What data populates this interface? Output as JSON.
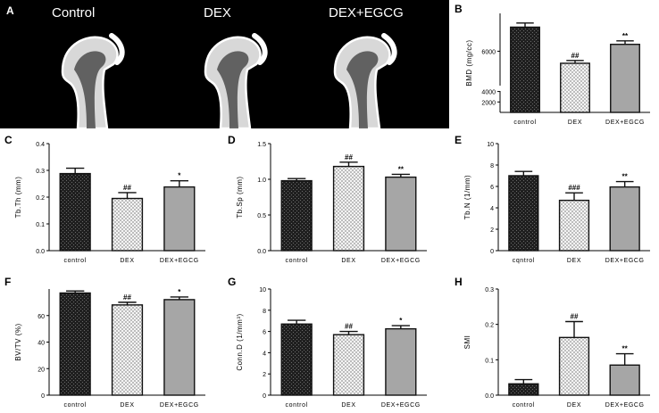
{
  "panel_a": {
    "letter": "A",
    "labels": [
      "Control",
      "DEX",
      "DEX+EGCG"
    ]
  },
  "colors": {
    "control": "#2b2b2b",
    "dex": "#e9e9e9",
    "dex_egcg": "#a6a6a6"
  },
  "chart_data": [
    {
      "id": "B",
      "letter": "B",
      "type": "bar",
      "ylabel": "BMD (mg/cc)",
      "categories": [
        "control",
        "DEX",
        "DEX+EGCG"
      ],
      "values": [
        6700,
        5650,
        6200
      ],
      "errors": [
        120,
        80,
        100
      ],
      "annotations": [
        "",
        "##",
        "**"
      ],
      "broken_axis": true,
      "ylim": [
        0,
        7100
      ],
      "break_range": [
        4100,
        5000
      ],
      "yticks": [
        2000,
        4000,
        6000
      ],
      "ytick_labels": [
        "2000",
        "4000",
        "6000"
      ]
    },
    {
      "id": "C",
      "letter": "C",
      "type": "bar",
      "ylabel": "Tb.Th (mm)",
      "categories": [
        "control",
        "DEX",
        "DEX+EGCG"
      ],
      "values": [
        0.288,
        0.195,
        0.238
      ],
      "errors": [
        0.02,
        0.022,
        0.023
      ],
      "annotations": [
        "",
        "##",
        "*"
      ],
      "ylim": [
        0,
        0.4
      ],
      "yticks": [
        0,
        0.1,
        0.2,
        0.3,
        0.4
      ],
      "ytick_labels": [
        "0.0",
        "0.1",
        "0.2",
        "0.3",
        "0.4"
      ]
    },
    {
      "id": "D",
      "letter": "D",
      "type": "bar",
      "ylabel": "Tb.Sp (mm)",
      "categories": [
        "control",
        "DEX",
        "DEX+EGCG"
      ],
      "values": [
        0.98,
        1.18,
        1.03
      ],
      "errors": [
        0.03,
        0.06,
        0.04
      ],
      "annotations": [
        "",
        "##",
        "**"
      ],
      "ylim": [
        0,
        1.5
      ],
      "yticks": [
        0,
        0.5,
        1.0,
        1.5
      ],
      "ytick_labels": [
        "0.0",
        "0.5",
        "1.0",
        "1.5"
      ]
    },
    {
      "id": "E",
      "letter": "E",
      "type": "bar",
      "ylabel": "Tb.N (1/mm)",
      "categories": [
        "cqntrol",
        "DEX",
        "DEX+EGCG"
      ],
      "values": [
        7.0,
        4.7,
        5.95
      ],
      "errors": [
        0.4,
        0.7,
        0.5
      ],
      "annotations": [
        "",
        "###",
        "**"
      ],
      "ylim": [
        0,
        10
      ],
      "yticks": [
        0,
        2,
        4,
        6,
        8,
        10
      ],
      "ytick_labels": [
        "0",
        "2",
        "4",
        "6",
        "8",
        "10"
      ]
    },
    {
      "id": "F",
      "letter": "F",
      "type": "bar",
      "ylabel": "BV/TV (%)",
      "categories": [
        "control",
        "DEX",
        "DEX+EGCG"
      ],
      "values": [
        77,
        68,
        72
      ],
      "errors": [
        1.5,
        2.0,
        2.0
      ],
      "annotations": [
        "",
        "##",
        "*"
      ],
      "ylim": [
        0,
        80
      ],
      "yticks": [
        0,
        20,
        40,
        60
      ],
      "ytick_labels": [
        "0",
        "20",
        "40",
        "60"
      ]
    },
    {
      "id": "G",
      "letter": "G",
      "type": "bar",
      "ylabel": "Conn.D (1/mm³)",
      "categories": [
        "control",
        "DEX",
        "DEX+EGCG"
      ],
      "values": [
        6.7,
        5.7,
        6.25
      ],
      "errors": [
        0.35,
        0.3,
        0.3
      ],
      "annotations": [
        "",
        "##",
        "*"
      ],
      "ylim": [
        0,
        10
      ],
      "yticks": [
        0,
        2,
        4,
        6,
        8,
        10
      ],
      "ytick_labels": [
        "0",
        "2",
        "4",
        "6",
        "8",
        "10"
      ]
    },
    {
      "id": "H",
      "letter": "H",
      "type": "bar",
      "ylabel": "SMI",
      "categories": [
        "control",
        "DEX",
        "DEX+EGCG"
      ],
      "values": [
        0.032,
        0.163,
        0.085
      ],
      "errors": [
        0.012,
        0.045,
        0.032
      ],
      "annotations": [
        "",
        "##",
        "**"
      ],
      "ylim": [
        0,
        0.3
      ],
      "yticks": [
        0,
        0.1,
        0.2,
        0.3
      ],
      "ytick_labels": [
        "0.0",
        "0.1",
        "0.2",
        "0.3"
      ]
    }
  ]
}
